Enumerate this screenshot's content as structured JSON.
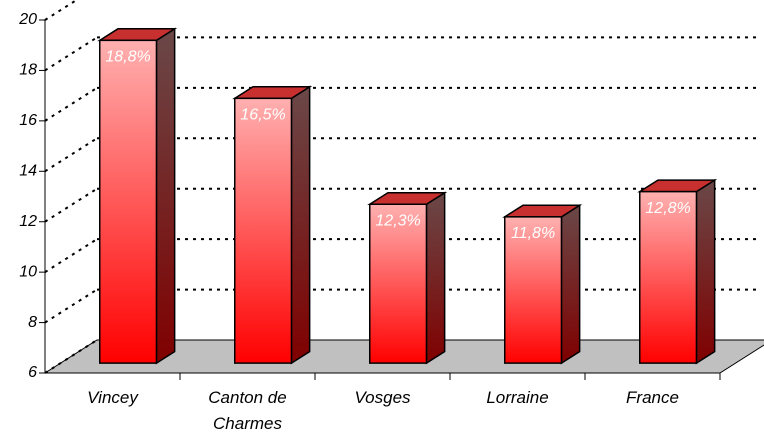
{
  "chart_data": {
    "type": "bar",
    "categories": [
      "Vincey",
      "Canton de Charmes",
      "Vosges",
      "Lorraine",
      "France"
    ],
    "values": [
      18.8,
      16.5,
      12.3,
      11.8,
      12.8
    ],
    "value_labels": [
      "18,8%",
      "16,5%",
      "12,3%",
      "11,8%",
      "12,8%"
    ],
    "color": "#ff0000",
    "ylim": [
      6,
      20
    ],
    "yticks": [
      6,
      8,
      10,
      12,
      14,
      16,
      18,
      20
    ],
    "grid": true
  }
}
